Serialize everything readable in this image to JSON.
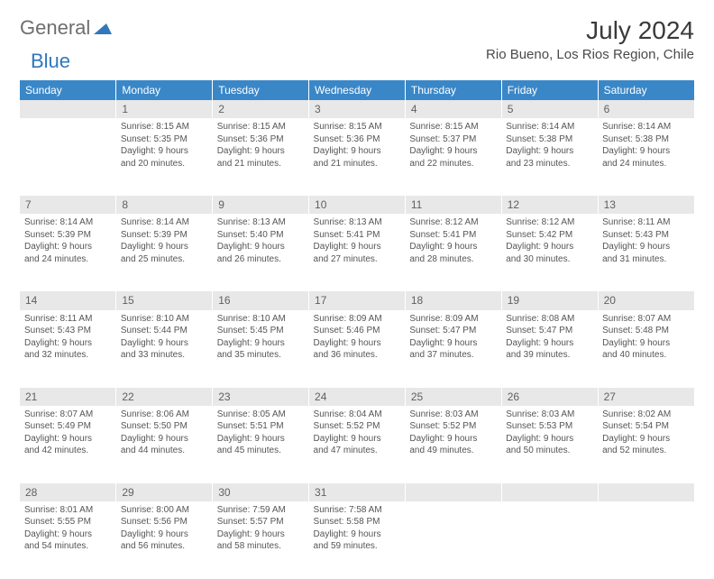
{
  "logo": {
    "part1": "General",
    "part2": "Blue"
  },
  "title": "July 2024",
  "location": "Rio Bueno, Los Rios Region, Chile",
  "colors": {
    "header_bg": "#3a87c8",
    "header_text": "#ffffff",
    "daynum_bg": "#e8e8e8",
    "body_text": "#555555",
    "logo_gray": "#6e6e6e",
    "logo_blue": "#2f78bc"
  },
  "dayHeaders": [
    "Sunday",
    "Monday",
    "Tuesday",
    "Wednesday",
    "Thursday",
    "Friday",
    "Saturday"
  ],
  "weeks": [
    {
      "nums": [
        "",
        "1",
        "2",
        "3",
        "4",
        "5",
        "6"
      ],
      "cells": [
        [],
        [
          "Sunrise: 8:15 AM",
          "Sunset: 5:35 PM",
          "Daylight: 9 hours",
          "and 20 minutes."
        ],
        [
          "Sunrise: 8:15 AM",
          "Sunset: 5:36 PM",
          "Daylight: 9 hours",
          "and 21 minutes."
        ],
        [
          "Sunrise: 8:15 AM",
          "Sunset: 5:36 PM",
          "Daylight: 9 hours",
          "and 21 minutes."
        ],
        [
          "Sunrise: 8:15 AM",
          "Sunset: 5:37 PM",
          "Daylight: 9 hours",
          "and 22 minutes."
        ],
        [
          "Sunrise: 8:14 AM",
          "Sunset: 5:38 PM",
          "Daylight: 9 hours",
          "and 23 minutes."
        ],
        [
          "Sunrise: 8:14 AM",
          "Sunset: 5:38 PM",
          "Daylight: 9 hours",
          "and 24 minutes."
        ]
      ]
    },
    {
      "nums": [
        "7",
        "8",
        "9",
        "10",
        "11",
        "12",
        "13"
      ],
      "cells": [
        [
          "Sunrise: 8:14 AM",
          "Sunset: 5:39 PM",
          "Daylight: 9 hours",
          "and 24 minutes."
        ],
        [
          "Sunrise: 8:14 AM",
          "Sunset: 5:39 PM",
          "Daylight: 9 hours",
          "and 25 minutes."
        ],
        [
          "Sunrise: 8:13 AM",
          "Sunset: 5:40 PM",
          "Daylight: 9 hours",
          "and 26 minutes."
        ],
        [
          "Sunrise: 8:13 AM",
          "Sunset: 5:41 PM",
          "Daylight: 9 hours",
          "and 27 minutes."
        ],
        [
          "Sunrise: 8:12 AM",
          "Sunset: 5:41 PM",
          "Daylight: 9 hours",
          "and 28 minutes."
        ],
        [
          "Sunrise: 8:12 AM",
          "Sunset: 5:42 PM",
          "Daylight: 9 hours",
          "and 30 minutes."
        ],
        [
          "Sunrise: 8:11 AM",
          "Sunset: 5:43 PM",
          "Daylight: 9 hours",
          "and 31 minutes."
        ]
      ]
    },
    {
      "nums": [
        "14",
        "15",
        "16",
        "17",
        "18",
        "19",
        "20"
      ],
      "cells": [
        [
          "Sunrise: 8:11 AM",
          "Sunset: 5:43 PM",
          "Daylight: 9 hours",
          "and 32 minutes."
        ],
        [
          "Sunrise: 8:10 AM",
          "Sunset: 5:44 PM",
          "Daylight: 9 hours",
          "and 33 minutes."
        ],
        [
          "Sunrise: 8:10 AM",
          "Sunset: 5:45 PM",
          "Daylight: 9 hours",
          "and 35 minutes."
        ],
        [
          "Sunrise: 8:09 AM",
          "Sunset: 5:46 PM",
          "Daylight: 9 hours",
          "and 36 minutes."
        ],
        [
          "Sunrise: 8:09 AM",
          "Sunset: 5:47 PM",
          "Daylight: 9 hours",
          "and 37 minutes."
        ],
        [
          "Sunrise: 8:08 AM",
          "Sunset: 5:47 PM",
          "Daylight: 9 hours",
          "and 39 minutes."
        ],
        [
          "Sunrise: 8:07 AM",
          "Sunset: 5:48 PM",
          "Daylight: 9 hours",
          "and 40 minutes."
        ]
      ]
    },
    {
      "nums": [
        "21",
        "22",
        "23",
        "24",
        "25",
        "26",
        "27"
      ],
      "cells": [
        [
          "Sunrise: 8:07 AM",
          "Sunset: 5:49 PM",
          "Daylight: 9 hours",
          "and 42 minutes."
        ],
        [
          "Sunrise: 8:06 AM",
          "Sunset: 5:50 PM",
          "Daylight: 9 hours",
          "and 44 minutes."
        ],
        [
          "Sunrise: 8:05 AM",
          "Sunset: 5:51 PM",
          "Daylight: 9 hours",
          "and 45 minutes."
        ],
        [
          "Sunrise: 8:04 AM",
          "Sunset: 5:52 PM",
          "Daylight: 9 hours",
          "and 47 minutes."
        ],
        [
          "Sunrise: 8:03 AM",
          "Sunset: 5:52 PM",
          "Daylight: 9 hours",
          "and 49 minutes."
        ],
        [
          "Sunrise: 8:03 AM",
          "Sunset: 5:53 PM",
          "Daylight: 9 hours",
          "and 50 minutes."
        ],
        [
          "Sunrise: 8:02 AM",
          "Sunset: 5:54 PM",
          "Daylight: 9 hours",
          "and 52 minutes."
        ]
      ]
    },
    {
      "nums": [
        "28",
        "29",
        "30",
        "31",
        "",
        "",
        ""
      ],
      "cells": [
        [
          "Sunrise: 8:01 AM",
          "Sunset: 5:55 PM",
          "Daylight: 9 hours",
          "and 54 minutes."
        ],
        [
          "Sunrise: 8:00 AM",
          "Sunset: 5:56 PM",
          "Daylight: 9 hours",
          "and 56 minutes."
        ],
        [
          "Sunrise: 7:59 AM",
          "Sunset: 5:57 PM",
          "Daylight: 9 hours",
          "and 58 minutes."
        ],
        [
          "Sunrise: 7:58 AM",
          "Sunset: 5:58 PM",
          "Daylight: 9 hours",
          "and 59 minutes."
        ],
        [],
        [],
        []
      ]
    }
  ]
}
